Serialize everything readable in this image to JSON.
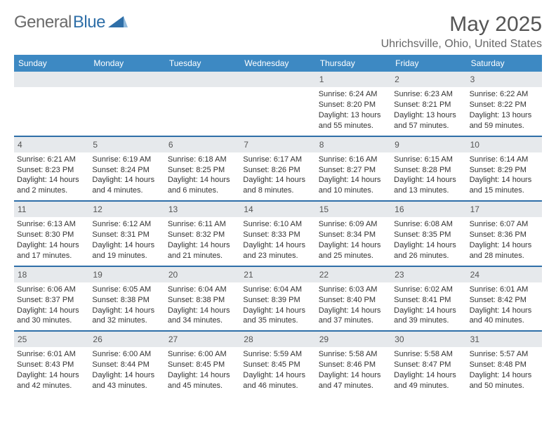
{
  "brand": {
    "part1": "General",
    "part2": "Blue"
  },
  "title": "May 2025",
  "subtitle": "Uhrichsville, Ohio, United States",
  "colors": {
    "header_bar": "#3d89c3",
    "daynum_bg": "#e6e9ec",
    "rule": "#2f6fa8",
    "text": "#333333",
    "title_text": "#555555"
  },
  "daysOfWeek": [
    "Sunday",
    "Monday",
    "Tuesday",
    "Wednesday",
    "Thursday",
    "Friday",
    "Saturday"
  ],
  "weeks": [
    [
      {
        "n": "",
        "sr": "",
        "ss": "",
        "dl": ""
      },
      {
        "n": "",
        "sr": "",
        "ss": "",
        "dl": ""
      },
      {
        "n": "",
        "sr": "",
        "ss": "",
        "dl": ""
      },
      {
        "n": "",
        "sr": "",
        "ss": "",
        "dl": ""
      },
      {
        "n": "1",
        "sr": "6:24 AM",
        "ss": "8:20 PM",
        "dl": "13 hours and 55 minutes."
      },
      {
        "n": "2",
        "sr": "6:23 AM",
        "ss": "8:21 PM",
        "dl": "13 hours and 57 minutes."
      },
      {
        "n": "3",
        "sr": "6:22 AM",
        "ss": "8:22 PM",
        "dl": "13 hours and 59 minutes."
      }
    ],
    [
      {
        "n": "4",
        "sr": "6:21 AM",
        "ss": "8:23 PM",
        "dl": "14 hours and 2 minutes."
      },
      {
        "n": "5",
        "sr": "6:19 AM",
        "ss": "8:24 PM",
        "dl": "14 hours and 4 minutes."
      },
      {
        "n": "6",
        "sr": "6:18 AM",
        "ss": "8:25 PM",
        "dl": "14 hours and 6 minutes."
      },
      {
        "n": "7",
        "sr": "6:17 AM",
        "ss": "8:26 PM",
        "dl": "14 hours and 8 minutes."
      },
      {
        "n": "8",
        "sr": "6:16 AM",
        "ss": "8:27 PM",
        "dl": "14 hours and 10 minutes."
      },
      {
        "n": "9",
        "sr": "6:15 AM",
        "ss": "8:28 PM",
        "dl": "14 hours and 13 minutes."
      },
      {
        "n": "10",
        "sr": "6:14 AM",
        "ss": "8:29 PM",
        "dl": "14 hours and 15 minutes."
      }
    ],
    [
      {
        "n": "11",
        "sr": "6:13 AM",
        "ss": "8:30 PM",
        "dl": "14 hours and 17 minutes."
      },
      {
        "n": "12",
        "sr": "6:12 AM",
        "ss": "8:31 PM",
        "dl": "14 hours and 19 minutes."
      },
      {
        "n": "13",
        "sr": "6:11 AM",
        "ss": "8:32 PM",
        "dl": "14 hours and 21 minutes."
      },
      {
        "n": "14",
        "sr": "6:10 AM",
        "ss": "8:33 PM",
        "dl": "14 hours and 23 minutes."
      },
      {
        "n": "15",
        "sr": "6:09 AM",
        "ss": "8:34 PM",
        "dl": "14 hours and 25 minutes."
      },
      {
        "n": "16",
        "sr": "6:08 AM",
        "ss": "8:35 PM",
        "dl": "14 hours and 26 minutes."
      },
      {
        "n": "17",
        "sr": "6:07 AM",
        "ss": "8:36 PM",
        "dl": "14 hours and 28 minutes."
      }
    ],
    [
      {
        "n": "18",
        "sr": "6:06 AM",
        "ss": "8:37 PM",
        "dl": "14 hours and 30 minutes."
      },
      {
        "n": "19",
        "sr": "6:05 AM",
        "ss": "8:38 PM",
        "dl": "14 hours and 32 minutes."
      },
      {
        "n": "20",
        "sr": "6:04 AM",
        "ss": "8:38 PM",
        "dl": "14 hours and 34 minutes."
      },
      {
        "n": "21",
        "sr": "6:04 AM",
        "ss": "8:39 PM",
        "dl": "14 hours and 35 minutes."
      },
      {
        "n": "22",
        "sr": "6:03 AM",
        "ss": "8:40 PM",
        "dl": "14 hours and 37 minutes."
      },
      {
        "n": "23",
        "sr": "6:02 AM",
        "ss": "8:41 PM",
        "dl": "14 hours and 39 minutes."
      },
      {
        "n": "24",
        "sr": "6:01 AM",
        "ss": "8:42 PM",
        "dl": "14 hours and 40 minutes."
      }
    ],
    [
      {
        "n": "25",
        "sr": "6:01 AM",
        "ss": "8:43 PM",
        "dl": "14 hours and 42 minutes."
      },
      {
        "n": "26",
        "sr": "6:00 AM",
        "ss": "8:44 PM",
        "dl": "14 hours and 43 minutes."
      },
      {
        "n": "27",
        "sr": "6:00 AM",
        "ss": "8:45 PM",
        "dl": "14 hours and 45 minutes."
      },
      {
        "n": "28",
        "sr": "5:59 AM",
        "ss": "8:45 PM",
        "dl": "14 hours and 46 minutes."
      },
      {
        "n": "29",
        "sr": "5:58 AM",
        "ss": "8:46 PM",
        "dl": "14 hours and 47 minutes."
      },
      {
        "n": "30",
        "sr": "5:58 AM",
        "ss": "8:47 PM",
        "dl": "14 hours and 49 minutes."
      },
      {
        "n": "31",
        "sr": "5:57 AM",
        "ss": "8:48 PM",
        "dl": "14 hours and 50 minutes."
      }
    ]
  ],
  "labels": {
    "sunrise": "Sunrise:",
    "sunset": "Sunset:",
    "daylight": "Daylight:"
  }
}
